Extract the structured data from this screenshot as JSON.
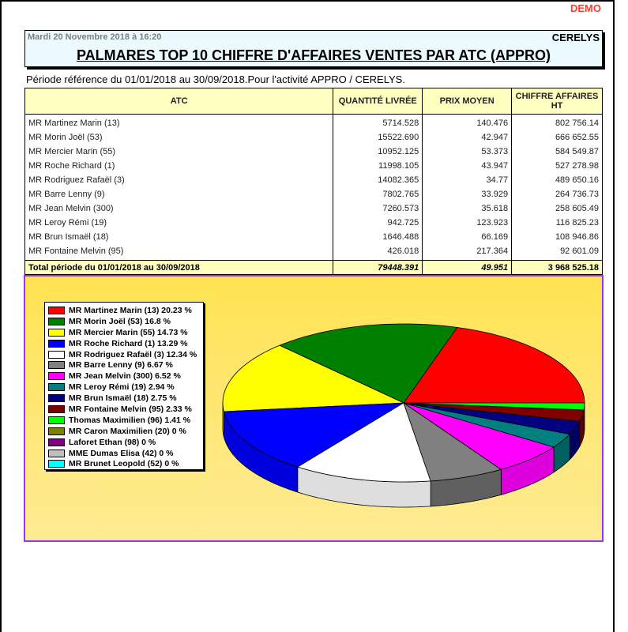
{
  "watermark": "DEMO",
  "header": {
    "date": "Mardi 20 Novembre 2018 à 16:20",
    "company": "CERELYS",
    "title": "PALMARES TOP 10 CHIFFRE D'AFFAIRES VENTES PAR ATC (APPRO)"
  },
  "period_text": "Période référence du 01/01/2018 au 30/09/2018.Pour l'activité APPRO / CERELYS.",
  "table": {
    "columns": [
      "ATC",
      "QUANTITÉ LIVRÉE",
      "PRIX MOYEN",
      "CHIFFRE AFFAIRES HT"
    ],
    "rows": [
      {
        "atc": "MR Martinez Marin (13)",
        "qty": "5714.528",
        "price": "140.476",
        "ca": "802 756.14"
      },
      {
        "atc": "MR Morin Joël (53)",
        "qty": "15522.690",
        "price": "42.947",
        "ca": "666 652.55"
      },
      {
        "atc": "MR Mercier Marin (55)",
        "qty": "10952.125",
        "price": "53.373",
        "ca": "584 549.87"
      },
      {
        "atc": "MR Roche Richard (1)",
        "qty": "11998.105",
        "price": "43.947",
        "ca": "527 278.98"
      },
      {
        "atc": "MR Rodriguez Rafaël (3)",
        "qty": "14082.365",
        "price": "34.77",
        "ca": "489 650.16"
      },
      {
        "atc": "MR Barre Lenny (9)",
        "qty": "7802.765",
        "price": "33.929",
        "ca": "264 736.73"
      },
      {
        "atc": "MR Jean Melvin (300)",
        "qty": "7260.573",
        "price": "35.618",
        "ca": "258 605.49"
      },
      {
        "atc": "MR Leroy Rémi (19)",
        "qty": "942.725",
        "price": "123.923",
        "ca": "116 825.23"
      },
      {
        "atc": "MR Brun Ismaël (18)",
        "qty": "1646.488",
        "price": "66.169",
        "ca": "108 946.86"
      },
      {
        "atc": "MR Fontaine Melvin (95)",
        "qty": "426.018",
        "price": "217.364",
        "ca": "92 601.09"
      }
    ],
    "total": {
      "label": "Total période du 01/01/2018 au 30/09/2018",
      "qty": "79448.391",
      "price": "49.951",
      "ca": "3 968 525.18"
    }
  },
  "colors": {
    "chart_border": "#9933ff",
    "header_bg": "#ffffc0",
    "title_bg": "#ecfbff",
    "watermark": "#ff3b2f"
  },
  "chart_data": {
    "type": "pie",
    "title": "",
    "style": "3d",
    "legend_position": "left",
    "categories": [
      "MR Martinez Marin (13)",
      "MR Morin Joël (53)",
      "MR Mercier Marin (55)",
      "MR Roche Richard (1)",
      "MR Rodriguez Rafaël (3)",
      "MR Barre Lenny (9)",
      "MR Jean Melvin (300)",
      "MR Leroy Rémi (19)",
      "MR Brun Ismaël (18)",
      "MR Fontaine Melvin (95)",
      "Thomas Maximilien (96)",
      "MR Caron Maximilien (20)",
      "Laforet Ethan (98)",
      "MME Dumas Elisa (42)",
      "MR Brunet Leopold (52)"
    ],
    "values": [
      20.23,
      16.8,
      14.73,
      13.29,
      12.34,
      6.67,
      6.52,
      2.94,
      2.75,
      2.33,
      1.41,
      0,
      0,
      0,
      0
    ],
    "unit": "%",
    "legend": [
      {
        "label": "MR Martinez Marin (13) 20.23 %",
        "color": "#ff0000",
        "side": "#c00000"
      },
      {
        "label": "MR Morin Joël (53) 16.8 %",
        "color": "#008000",
        "side": "#006000"
      },
      {
        "label": "MR Mercier Marin (55) 14.73 %",
        "color": "#ffff00",
        "side": "#d0d000"
      },
      {
        "label": "MR Roche Richard (1) 13.29 %",
        "color": "#0000ff",
        "side": "#0000dd"
      },
      {
        "label": "MR Rodriguez Rafaël (3) 12.34 %",
        "color": "#ffffff",
        "side": "#dedede"
      },
      {
        "label": "MR Barre Lenny (9) 6.67 %",
        "color": "#808080",
        "side": "#606060"
      },
      {
        "label": "MR Jean Melvin (300) 6.52 %",
        "color": "#ff00ff",
        "side": "#dd00dd"
      },
      {
        "label": "MR Leroy Rémi (19) 2.94 %",
        "color": "#008080",
        "side": "#006060"
      },
      {
        "label": "MR Brun Ismaël (18) 2.75 %",
        "color": "#000080",
        "side": "#000060"
      },
      {
        "label": "MR Fontaine Melvin (95) 2.33 %",
        "color": "#800000",
        "side": "#600000"
      },
      {
        "label": "Thomas Maximilien (96) 1.41 %",
        "color": "#00ff00",
        "side": "#00c000"
      },
      {
        "label": "MR Caron Maximilien (20) 0 %",
        "color": "#808000",
        "side": "#606000"
      },
      {
        "label": "Laforet Ethan (98) 0 %",
        "color": "#800080",
        "side": "#600060"
      },
      {
        "label": "MME Dumas Elisa (42) 0 %",
        "color": "#c0c0c0",
        "side": "#a0a0a0"
      },
      {
        "label": "MR Brunet Leopold (52) 0 %",
        "color": "#00ffff",
        "side": "#00c0c0"
      }
    ]
  }
}
